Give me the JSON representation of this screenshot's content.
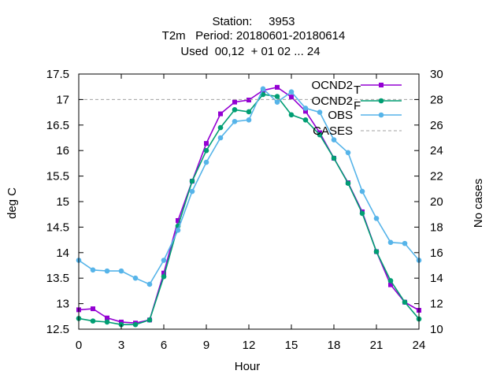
{
  "chart_data": {
    "type": "line",
    "title": [
      "Station:     3953",
      "T2m   Period: 20180601-20180614",
      "Used  00,12  + 01 02 ... 24"
    ],
    "xlabel": "Hour",
    "ylabel": "deg C",
    "y2label": "No cases",
    "xlim": [
      0,
      24
    ],
    "ylim": [
      12.5,
      17.5
    ],
    "y2lim": [
      10,
      30
    ],
    "xticks": [
      0,
      3,
      6,
      9,
      12,
      15,
      18,
      21,
      24
    ],
    "yticks": [
      12.5,
      13,
      13.5,
      14,
      14.5,
      15,
      15.5,
      16,
      16.5,
      17,
      17.5
    ],
    "y2ticks": [
      10,
      12,
      14,
      16,
      18,
      20,
      22,
      24,
      26,
      28,
      30
    ],
    "legend_position": "top-right",
    "x": [
      0,
      1,
      2,
      3,
      4,
      5,
      6,
      7,
      8,
      9,
      10,
      11,
      12,
      13,
      14,
      15,
      16,
      17,
      18,
      19,
      20,
      21,
      22,
      23,
      24
    ],
    "series": [
      {
        "name": "OCND2",
        "subscript": "T",
        "color": "#9400d3",
        "marker": "square",
        "values": [
          12.88,
          12.9,
          12.72,
          12.64,
          12.62,
          12.68,
          13.6,
          14.63,
          15.4,
          16.14,
          16.72,
          16.95,
          16.99,
          17.18,
          17.24,
          17.05,
          16.77,
          16.35,
          15.85,
          15.37,
          14.8,
          14.02,
          13.37,
          13.03,
          12.87
        ]
      },
      {
        "name": "OCND2",
        "subscript": "F",
        "color": "#009e73",
        "marker": "circle",
        "values": [
          12.71,
          12.66,
          12.64,
          12.59,
          12.59,
          12.68,
          13.53,
          14.52,
          15.4,
          16.0,
          16.45,
          16.8,
          16.76,
          17.1,
          17.06,
          16.7,
          16.6,
          16.31,
          15.85,
          15.36,
          14.77,
          14.02,
          13.45,
          13.03,
          12.7
        ]
      },
      {
        "name": "OBS",
        "color": "#56b4e9",
        "marker": "circle",
        "values": [
          13.85,
          13.66,
          13.64,
          13.64,
          13.5,
          13.38,
          13.85,
          14.44,
          15.2,
          15.77,
          16.25,
          16.57,
          16.6,
          17.21,
          16.95,
          17.15,
          16.83,
          16.75,
          16.21,
          15.96,
          15.2,
          14.67,
          14.2,
          14.18,
          13.85
        ]
      },
      {
        "name": "CASES",
        "color": "#a0a0a0",
        "dashed": true,
        "axis": "y2",
        "values": [
          28,
          28,
          28,
          28,
          28,
          28,
          28,
          28,
          28,
          28,
          28,
          28,
          28,
          28,
          28,
          28,
          28,
          28,
          28,
          28,
          28,
          28,
          28,
          28,
          28
        ]
      }
    ]
  }
}
